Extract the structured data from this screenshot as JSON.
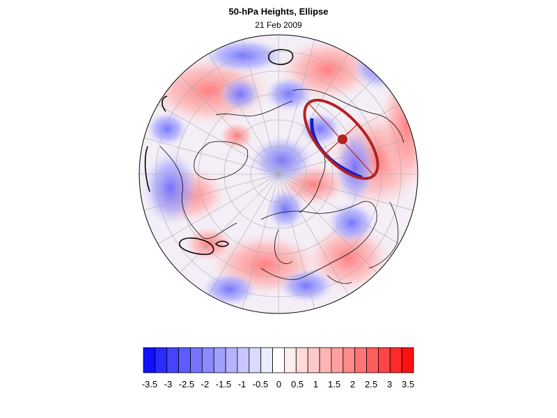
{
  "title": "50-hPa Heights, Ellipse",
  "subtitle": "21 Feb 2009",
  "colorbar": {
    "ticks": [
      "-3.5",
      "-3",
      "-2.5",
      "-2",
      "-1.5",
      "-1",
      "-0.5",
      "0",
      "0.5",
      "1",
      "1.5",
      "2",
      "2.5",
      "3",
      "3.5"
    ],
    "colors": [
      "#1010ff",
      "#2a2aff",
      "#4444ff",
      "#5c5cff",
      "#7474ff",
      "#8a8aff",
      "#a0a0ff",
      "#b4b4ff",
      "#c8c8ff",
      "#dadaff",
      "#ececff",
      "#ffffff",
      "#ffecec",
      "#ffdada",
      "#ffc8c8",
      "#ffb4b4",
      "#ffa0a0",
      "#ff8a8a",
      "#ff7474",
      "#ff5c5c",
      "#ff4444",
      "#ff2a2a",
      "#ff1010"
    ]
  },
  "map": {
    "projection": "orthographic polar (Northern Hemisphere)",
    "field": "standardized anomaly",
    "ellipse_color": "#b22222",
    "ellipse_center_color": "#b22222",
    "contour_color": "#000000",
    "positive_color": "#ff8080",
    "negative_color": "#8080ff"
  }
}
